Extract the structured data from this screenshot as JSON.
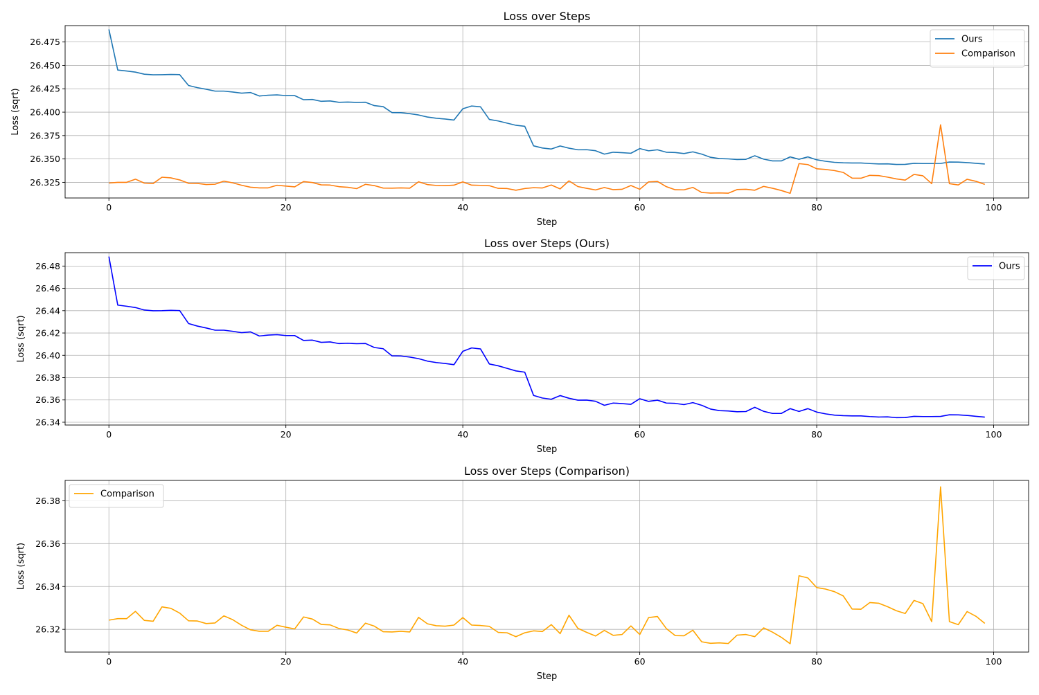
{
  "chart_data": [
    {
      "type": "line",
      "title": "Loss over Steps",
      "xlabel": "Step",
      "ylabel": "Loss (sqrt)",
      "xlim": [
        -4.95,
        103.95
      ],
      "ylim": [
        26.3083,
        26.4925
      ],
      "xticks": [
        0,
        20,
        40,
        60,
        80,
        100
      ],
      "yticks": [
        26.325,
        26.35,
        26.375,
        26.4,
        26.425,
        26.45,
        26.475
      ],
      "ytick_labels": [
        "26.325",
        "26.350",
        "26.375",
        "26.400",
        "26.425",
        "26.450",
        "26.475"
      ],
      "grid": true,
      "legend": "top-right",
      "series": [
        {
          "name": "Ours",
          "color": "#1f77b4",
          "ref": "ours"
        },
        {
          "name": "Comparison",
          "color": "#ff7f0e",
          "ref": "comparison"
        }
      ]
    },
    {
      "type": "line",
      "title": "Loss over Steps (Ours)",
      "xlabel": "Step",
      "ylabel": "Loss (sqrt)",
      "xlim": [
        -4.95,
        103.95
      ],
      "ylim": [
        26.3375,
        26.492
      ],
      "xticks": [
        0,
        20,
        40,
        60,
        80,
        100
      ],
      "yticks": [
        26.34,
        26.36,
        26.38,
        26.4,
        26.42,
        26.44,
        26.46,
        26.48
      ],
      "ytick_labels": [
        "26.34",
        "26.36",
        "26.38",
        "26.40",
        "26.42",
        "26.44",
        "26.46",
        "26.48"
      ],
      "grid": true,
      "legend": "top-right",
      "series": [
        {
          "name": "Ours",
          "color": "#0000ff",
          "ref": "ours"
        }
      ]
    },
    {
      "type": "line",
      "title": "Loss over Steps (Comparison)",
      "xlabel": "Step",
      "ylabel": "Loss (sqrt)",
      "xlim": [
        -4.95,
        103.95
      ],
      "ylim": [
        26.3094,
        26.3895
      ],
      "xticks": [
        0,
        20,
        40,
        60,
        80,
        100
      ],
      "yticks": [
        26.32,
        26.34,
        26.36,
        26.38
      ],
      "ytick_labels": [
        "26.32",
        "26.34",
        "26.36",
        "26.38"
      ],
      "grid": true,
      "legend": "top-left",
      "series": [
        {
          "name": "Comparison",
          "color": "#ffa500",
          "ref": "comparison"
        }
      ]
    }
  ],
  "series_values": {
    "x": [
      0,
      1,
      2,
      3,
      4,
      5,
      6,
      7,
      8,
      9,
      10,
      11,
      12,
      13,
      14,
      15,
      16,
      17,
      18,
      19,
      20,
      21,
      22,
      23,
      24,
      25,
      26,
      27,
      28,
      29,
      30,
      31,
      32,
      33,
      34,
      35,
      36,
      37,
      38,
      39,
      40,
      41,
      42,
      43,
      44,
      45,
      46,
      47,
      48,
      49,
      50,
      51,
      52,
      53,
      54,
      55,
      56,
      57,
      58,
      59,
      60,
      61,
      62,
      63,
      64,
      65,
      66,
      67,
      68,
      69,
      70,
      71,
      72,
      73,
      74,
      75,
      76,
      77,
      78,
      79,
      80,
      81,
      82,
      83,
      84,
      85,
      86,
      87,
      88,
      89,
      90,
      91,
      92,
      93,
      94,
      95,
      96,
      97,
      98,
      99
    ],
    "ours": [
      26.4885,
      26.445,
      26.444,
      26.4428,
      26.4406,
      26.4399,
      26.44,
      26.4403,
      26.4401,
      26.4285,
      26.4262,
      26.4245,
      26.4225,
      26.4225,
      26.4215,
      26.4203,
      26.421,
      26.4173,
      26.4181,
      26.4185,
      26.4177,
      26.4177,
      26.4133,
      26.4136,
      26.4116,
      26.412,
      26.4105,
      26.4108,
      26.4104,
      26.4106,
      26.407,
      26.4059,
      26.3995,
      26.3994,
      26.3984,
      26.397,
      26.3948,
      26.3935,
      26.3927,
      26.3916,
      26.4036,
      26.4066,
      26.4057,
      26.3922,
      26.3906,
      26.3883,
      26.386,
      26.3849,
      26.364,
      26.3617,
      26.3606,
      26.3639,
      26.3615,
      26.3598,
      26.3599,
      26.3588,
      26.3552,
      26.3572,
      26.3567,
      26.3561,
      26.3611,
      26.3587,
      26.3598,
      26.3572,
      26.3569,
      26.3558,
      26.3576,
      26.3552,
      26.3518,
      26.3504,
      26.3501,
      26.3494,
      26.3496,
      26.3534,
      26.3498,
      26.3479,
      26.3479,
      26.3522,
      26.3497,
      26.3522,
      26.3491,
      26.3475,
      26.3464,
      26.3459,
      26.3457,
      26.3457,
      26.3451,
      26.3447,
      26.3448,
      26.3441,
      26.3442,
      26.3453,
      26.3451,
      26.3451,
      26.3452,
      26.3467,
      26.3466,
      26.3461,
      26.3453,
      26.3446
    ],
    "comparison": [
      26.3243,
      26.325,
      26.325,
      26.3284,
      26.3242,
      26.3238,
      26.3305,
      26.3298,
      26.3276,
      26.324,
      26.3239,
      26.3227,
      26.323,
      26.3263,
      26.3245,
      26.3219,
      26.3198,
      26.3191,
      26.3191,
      26.3219,
      26.321,
      26.3202,
      26.3258,
      26.3248,
      26.3223,
      26.3221,
      26.3204,
      26.3197,
      26.3183,
      26.3229,
      26.3215,
      26.3189,
      26.3188,
      26.3191,
      26.3188,
      26.3256,
      26.3226,
      26.3217,
      26.3215,
      26.322,
      26.3255,
      26.322,
      26.3218,
      26.3214,
      26.3186,
      26.3184,
      26.3166,
      26.3184,
      26.3193,
      26.319,
      26.3222,
      26.318,
      26.3266,
      26.3205,
      26.3186,
      26.3169,
      26.3195,
      26.3172,
      26.3176,
      26.3216,
      26.3176,
      26.3255,
      26.326,
      26.3204,
      26.3171,
      26.317,
      26.3196,
      26.3142,
      26.3135,
      26.3137,
      26.3134,
      26.3173,
      26.3176,
      26.3166,
      26.3207,
      26.3187,
      26.3163,
      26.3133,
      26.345,
      26.344,
      26.3395,
      26.3388,
      26.3376,
      26.3356,
      26.3295,
      26.3294,
      26.3325,
      26.3322,
      26.3306,
      26.3287,
      26.3274,
      26.3335,
      26.332,
      26.3236,
      26.3865,
      26.3236,
      26.3222,
      26.3283,
      26.3261,
      26.3228
    ]
  }
}
